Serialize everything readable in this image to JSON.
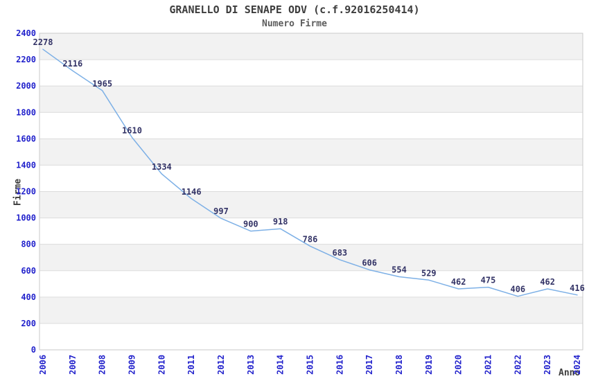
{
  "chart_data": {
    "type": "line",
    "title": "GRANELLO DI SENAPE ODV (c.f.92016250414)",
    "subtitle": "Numero Firme",
    "xlabel": "Anno",
    "ylabel": "Firme",
    "x": [
      2006,
      2007,
      2008,
      2009,
      2010,
      2011,
      2012,
      2013,
      2014,
      2015,
      2016,
      2017,
      2018,
      2019,
      2020,
      2021,
      2022,
      2023,
      2024
    ],
    "series": [
      {
        "name": "Numero Firme",
        "values": [
          2278,
          2116,
          1965,
          1610,
          1334,
          1146,
          997,
          900,
          918,
          786,
          683,
          606,
          554,
          529,
          462,
          475,
          406,
          462,
          416
        ]
      }
    ],
    "ylim": [
      0,
      2400
    ],
    "ytick_step": 200,
    "grid": "horizontal-bands-alternating",
    "legend": "none",
    "data_labels": "above-points",
    "colors": {
      "line": "#7db0e6",
      "tick_label": "#2222cc",
      "data_label": "#333366",
      "band": "#f2f2f2",
      "gridline": "#dcdcdc",
      "frame": "#c9c9c9",
      "title": "#3d3d3d",
      "subtitle": "#5c5c5c"
    }
  }
}
